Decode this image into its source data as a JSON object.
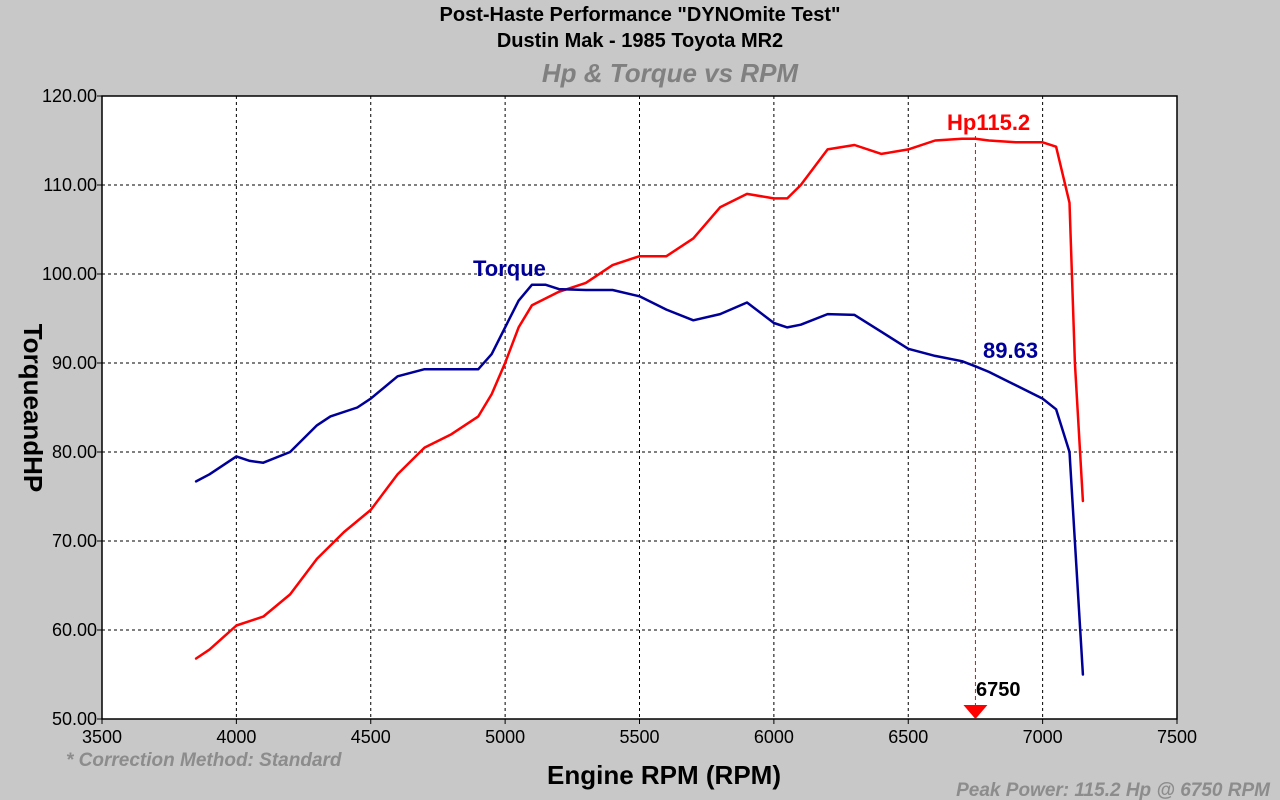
{
  "chart_data": {
    "type": "line",
    "title_line1": "Post-Haste Performance \"DYNOmite Test\"",
    "title_line2": "Dustin Mak  - 1985 Toyota MR2",
    "subtitle": "Hp & Torque vs RPM",
    "xlabel": "Engine RPM (RPM)",
    "ylabel": "TorqueandHP",
    "xlim": [
      3500,
      7500
    ],
    "ylim": [
      50,
      120
    ],
    "xticks": [
      "3500",
      "4000",
      "4500",
      "5000",
      "5500",
      "6000",
      "6500",
      "7000",
      "7500"
    ],
    "yticks": [
      "50.00",
      "60.00",
      "70.00",
      "80.00",
      "90.00",
      "100.00",
      "110.00",
      "120.00"
    ],
    "grid": true,
    "series": [
      {
        "name": "Hp",
        "color": "#ff0000",
        "x": [
          3850,
          3900,
          4000,
          4050,
          4100,
          4200,
          4300,
          4400,
          4500,
          4600,
          4700,
          4800,
          4900,
          4950,
          5000,
          5050,
          5100,
          5200,
          5300,
          5400,
          5500,
          5600,
          5700,
          5800,
          5900,
          6000,
          6050,
          6100,
          6200,
          6300,
          6400,
          6500,
          6600,
          6700,
          6750,
          6800,
          6900,
          7000,
          7050,
          7100,
          7120,
          7150
        ],
        "values": [
          56.8,
          57.8,
          60.5,
          61.0,
          61.5,
          64.0,
          68.0,
          71.0,
          73.5,
          77.5,
          80.5,
          82.0,
          84.0,
          86.5,
          90.0,
          94.0,
          96.5,
          98.0,
          99.0,
          101.0,
          102.0,
          102.0,
          104.0,
          107.5,
          109.0,
          108.5,
          108.5,
          110.0,
          114.0,
          114.5,
          113.5,
          114.0,
          115.0,
          115.2,
          115.2,
          115.0,
          114.8,
          114.8,
          114.3,
          108.0,
          90.0,
          74.5
        ]
      },
      {
        "name": "Torque",
        "color": "#000099",
        "x": [
          3850,
          3900,
          4000,
          4050,
          4100,
          4200,
          4300,
          4350,
          4450,
          4500,
          4600,
          4700,
          4800,
          4900,
          4950,
          5000,
          5050,
          5100,
          5150,
          5200,
          5300,
          5400,
          5500,
          5600,
          5700,
          5800,
          5900,
          6000,
          6050,
          6100,
          6200,
          6300,
          6400,
          6500,
          6600,
          6700,
          6750,
          6800,
          6900,
          7000,
          7050,
          7100,
          7150
        ],
        "values": [
          76.7,
          77.5,
          79.5,
          79.0,
          78.8,
          80.0,
          83.0,
          84.0,
          85.0,
          86.0,
          88.5,
          89.3,
          89.3,
          89.3,
          91.0,
          94.0,
          97.0,
          98.8,
          98.8,
          98.3,
          98.2,
          98.2,
          97.5,
          96.0,
          94.8,
          95.5,
          96.8,
          94.5,
          94.0,
          94.3,
          95.5,
          95.4,
          93.5,
          91.6,
          90.8,
          90.2,
          89.63,
          89.0,
          87.5,
          86.0,
          84.8,
          80.0,
          55.0
        ]
      }
    ],
    "annotations": {
      "hp_label": "Hp",
      "hp_peak_value": "115.2",
      "torque_label": "Torque",
      "torque_marker_value": "89.63",
      "marker_rpm_label": "6750",
      "marker_rpm": 6750,
      "marker_color": "#ff0000"
    },
    "correction_note": "* Correction Method: Standard",
    "peak_power_note": "Peak Power: 115.2 Hp @ 6750 RPM"
  }
}
